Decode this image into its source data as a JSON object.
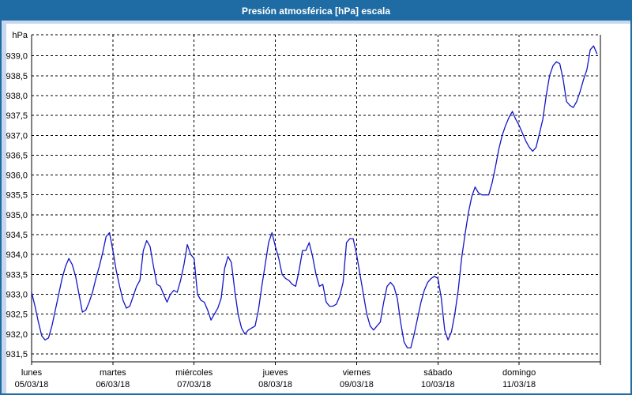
{
  "window": {
    "title": "Presión atmosférica [hPa] escala"
  },
  "colors": {
    "title_bar": "#1e6ca3",
    "frame": "#c9d7ee",
    "line": "#1515c8",
    "grid": "#000000"
  },
  "chart_data": {
    "type": "line",
    "title": "Presión atmosférica [hPa] escala",
    "y_unit_label": "hPa",
    "xlabel": "",
    "ylabel": "hPa",
    "ylim": [
      931.3,
      939.53
    ],
    "grid": "dashed",
    "legend": "none",
    "y_tick_labels": [
      "939,0",
      "938,5",
      "938,0",
      "937,5",
      "937,0",
      "936,5",
      "936,0",
      "935,5",
      "935,0",
      "934,5",
      "934,0",
      "933,5",
      "933,0",
      "932,5",
      "932,0",
      "931,5"
    ],
    "x_days": [
      {
        "name": "lunes",
        "date": "05/03/18"
      },
      {
        "name": "martes",
        "date": "06/03/18"
      },
      {
        "name": "miércoles",
        "date": "07/03/18"
      },
      {
        "name": "jueves",
        "date": "08/03/18"
      },
      {
        "name": "viernes",
        "date": "09/03/18"
      },
      {
        "name": "sábado",
        "date": "10/03/18"
      },
      {
        "name": "domingo",
        "date": "11/03/18"
      }
    ],
    "x_total_hours": 168,
    "hours_per_point": 1,
    "series": [
      {
        "name": "Presión atmosférica",
        "unit": "hPa",
        "values": [
          933.05,
          932.7,
          932.3,
          931.95,
          931.85,
          931.9,
          932.2,
          932.6,
          933.0,
          933.4,
          933.7,
          933.9,
          933.75,
          933.45,
          933.0,
          932.55,
          932.6,
          932.8,
          933.05,
          933.4,
          933.7,
          934.05,
          934.45,
          934.55,
          934.1,
          933.6,
          933.2,
          932.85,
          932.65,
          932.7,
          932.95,
          933.2,
          933.35,
          934.1,
          934.35,
          934.2,
          933.7,
          933.25,
          933.2,
          933.0,
          932.8,
          933.0,
          933.1,
          933.05,
          933.35,
          933.75,
          934.25,
          934.0,
          933.9,
          933.0,
          932.85,
          932.8,
          932.6,
          932.35,
          932.5,
          932.65,
          932.9,
          933.65,
          933.95,
          933.8,
          933.1,
          932.5,
          932.15,
          932.0,
          932.1,
          932.15,
          932.2,
          932.6,
          933.2,
          933.75,
          934.3,
          934.55,
          934.2,
          933.9,
          933.5,
          933.4,
          933.35,
          933.25,
          933.2,
          933.6,
          934.1,
          934.1,
          934.3,
          933.95,
          933.5,
          933.2,
          933.25,
          932.8,
          932.7,
          932.7,
          932.75,
          932.95,
          933.3,
          934.3,
          934.4,
          934.4,
          934.0,
          933.5,
          933.0,
          932.5,
          932.2,
          932.1,
          932.2,
          932.3,
          932.8,
          933.2,
          933.3,
          933.2,
          932.9,
          932.3,
          931.8,
          931.65,
          931.65,
          932.0,
          932.4,
          932.8,
          933.1,
          933.3,
          933.4,
          933.45,
          933.4,
          932.9,
          932.1,
          931.85,
          932.05,
          932.5,
          933.1,
          933.9,
          934.5,
          935.05,
          935.45,
          935.7,
          935.55,
          935.5,
          935.5,
          935.5,
          935.8,
          936.2,
          936.65,
          937.0,
          937.25,
          937.45,
          937.6,
          937.4,
          937.25,
          937.05,
          936.85,
          936.7,
          936.6,
          936.7,
          937.05,
          937.4,
          938.0,
          938.5,
          938.75,
          938.85,
          938.8,
          938.4,
          937.85,
          937.75,
          937.7,
          937.85,
          938.1,
          938.4,
          938.65,
          939.15,
          939.25,
          939.05
        ]
      }
    ]
  }
}
